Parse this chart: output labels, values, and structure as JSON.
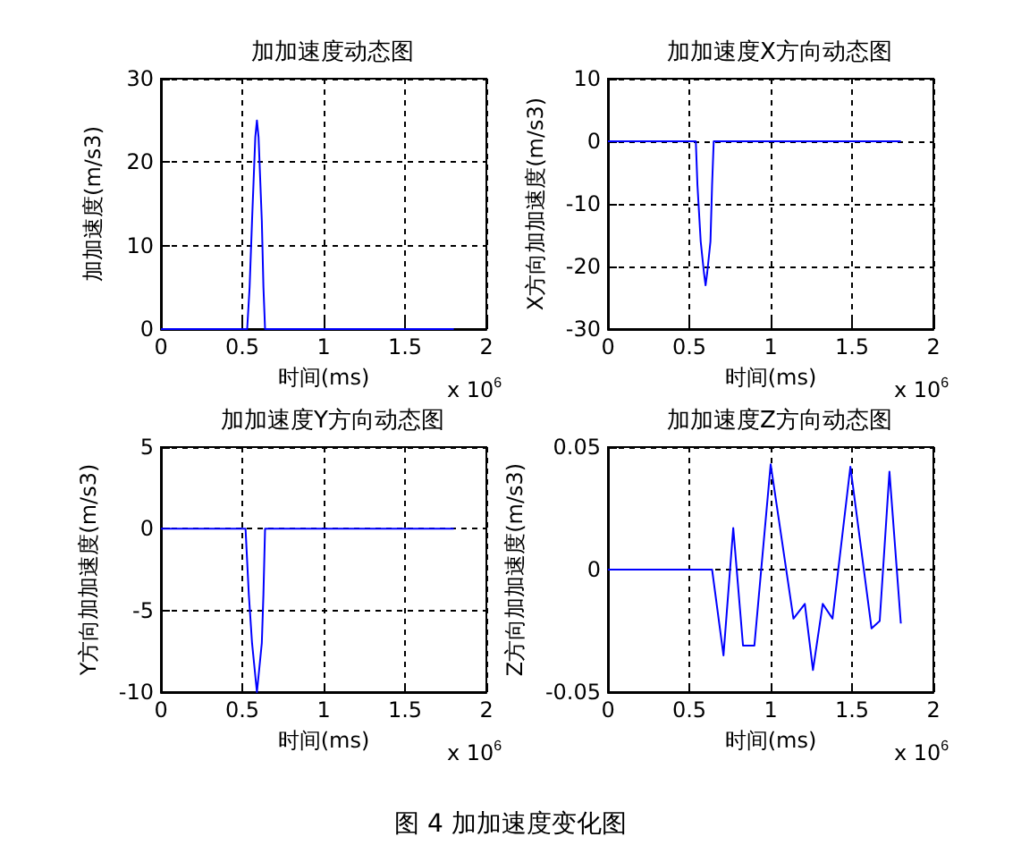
{
  "chart_data": [
    {
      "type": "line",
      "title": "加加速度动态图",
      "xlabel": "时间(ms)",
      "ylabel": "加加速度(m/s3)",
      "annotations": [
        "x 10$^{6}$"
      ],
      "x": [
        0,
        0.53,
        0.545,
        0.56,
        0.57,
        0.58,
        0.59,
        0.6,
        0.61,
        0.62,
        0.63,
        0.64,
        1.8
      ],
      "series": [
        {
          "color": "#0000ff",
          "values": [
            0,
            0,
            5,
            13,
            18,
            23,
            25,
            23,
            18,
            13,
            5,
            0,
            0
          ]
        }
      ],
      "xlim": [
        0,
        2
      ],
      "xticks": [
        0,
        0.5,
        1,
        1.5,
        2
      ],
      "ylim": [
        0,
        30
      ],
      "yticks": [
        0,
        10,
        20,
        30
      ],
      "grid": true,
      "marker": "none",
      "line_style": "solid"
    },
    {
      "type": "line",
      "title": "加加速度X方向动态图",
      "xlabel": "时间(ms)",
      "ylabel": "X方向加加速度(m/s3)",
      "annotations": [
        "x 10$^{6}$"
      ],
      "x": [
        0,
        0.54,
        0.55,
        0.57,
        0.59,
        0.6,
        0.61,
        0.63,
        0.64,
        0.65,
        1.8
      ],
      "series": [
        {
          "color": "#0000ff",
          "values": [
            0,
            0,
            -7,
            -16,
            -21,
            -23,
            -21,
            -16,
            -7,
            0,
            0
          ]
        }
      ],
      "xlim": [
        0,
        2
      ],
      "xticks": [
        0,
        0.5,
        1,
        1.5,
        2
      ],
      "ylim": [
        -30,
        10
      ],
      "yticks": [
        -30,
        -20,
        -10,
        0,
        10
      ],
      "grid": true,
      "marker": "none",
      "line_style": "solid"
    },
    {
      "type": "line",
      "title": "加加速度Y方向动态图",
      "xlabel": "时间(ms)",
      "ylabel": "Y方向加加速度(m/s3)",
      "annotations": [
        "x 10$^{6}$"
      ],
      "x": [
        0,
        0.52,
        0.54,
        0.56,
        0.58,
        0.59,
        0.6,
        0.62,
        0.63,
        0.64,
        1.8
      ],
      "series": [
        {
          "color": "#0000ff",
          "values": [
            0,
            0,
            -4,
            -7,
            -9,
            -10,
            -9,
            -7,
            -4,
            0,
            0
          ]
        }
      ],
      "xlim": [
        0,
        2
      ],
      "xticks": [
        0,
        0.5,
        1,
        1.5,
        2
      ],
      "ylim": [
        -10,
        5
      ],
      "yticks": [
        -10,
        -5,
        0,
        5
      ],
      "grid": true,
      "marker": "none",
      "line_style": "solid"
    },
    {
      "type": "line",
      "title": "加加速度Z方向动态图",
      "xlabel": "时间(ms)",
      "ylabel": "Z方向加加速度(m/s3)",
      "annotations": [
        "x 10$^{6}$",
        "图 4  加加速度变化图"
      ],
      "x": [
        0,
        0.64,
        0.71,
        0.77,
        0.83,
        0.9,
        1.0,
        1.14,
        1.21,
        1.26,
        1.32,
        1.38,
        1.49,
        1.62,
        1.67,
        1.73,
        1.8
      ],
      "series": [
        {
          "color": "#0000ff",
          "values": [
            0,
            0,
            -0.035,
            0.017,
            -0.031,
            -0.031,
            0.043,
            -0.02,
            -0.014,
            -0.041,
            -0.014,
            -0.02,
            0.042,
            -0.024,
            -0.021,
            0.04,
            -0.022
          ]
        }
      ],
      "xlim": [
        0,
        2
      ],
      "xticks": [
        0,
        0.5,
        1,
        1.5,
        2
      ],
      "ylim": [
        -0.05,
        0.05
      ],
      "yticks": [
        -0.05,
        0,
        0.05
      ],
      "grid": true,
      "marker": "none",
      "line_style": "solid"
    }
  ]
}
